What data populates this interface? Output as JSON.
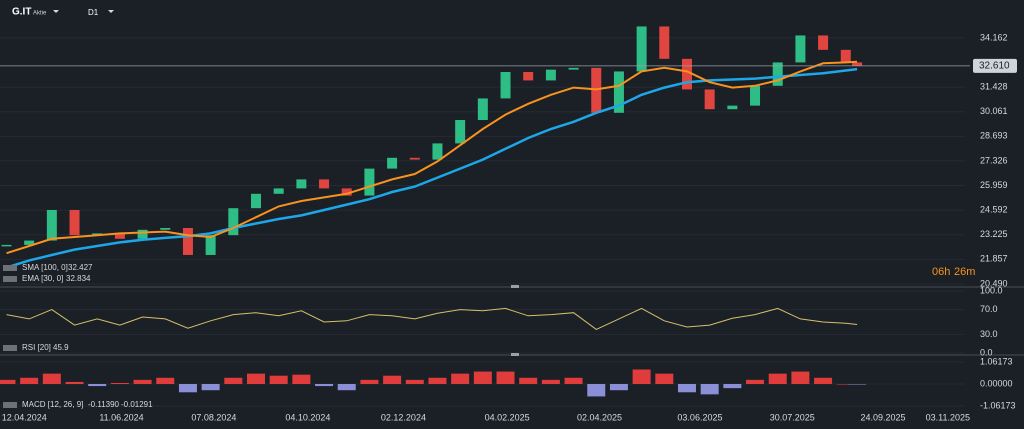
{
  "header": {
    "symbol": "G.IT",
    "kind": "Aktie",
    "timeframe": "D1"
  },
  "timer": {
    "hours": "06h",
    "minutes": "26m"
  },
  "current_price": {
    "value": 32.61,
    "label": "32.610"
  },
  "chart_data": [
    {
      "type": "candlestick",
      "x": [
        "01.04.2024",
        "15.04.2024",
        "29.04.2024",
        "13.05.2024",
        "27.05.2024",
        "10.06.2024",
        "24.06.2024",
        "08.07.2024",
        "22.07.2024",
        "05.08.2024",
        "19.08.2024",
        "02.09.2024",
        "16.09.2024",
        "30.09.2024",
        "14.10.2024",
        "28.10.2024",
        "11.11.2024",
        "25.11.2024",
        "09.12.2024",
        "23.12.2024",
        "06.01.2025",
        "20.01.2025",
        "03.02.2025",
        "17.02.2025",
        "03.03.2025",
        "17.03.2025",
        "31.03.2025",
        "14.04.2025",
        "28.04.2025",
        "12.05.2025",
        "26.05.2025",
        "09.06.2025",
        "23.06.2025",
        "07.07.2025",
        "21.07.2025",
        "04.08.2025",
        "18.08.2025",
        "01.09.2025",
        "08.09.2025"
      ],
      "xlim": [
        "28.03.2024",
        "20.12.2025"
      ],
      "ylim": [
        20.32,
        36.27
      ],
      "yticks": [
        34.162,
        31.428,
        30.061,
        28.693,
        27.326,
        25.959,
        24.592,
        23.225,
        21.857,
        {
          "value": 20.49,
          "label": "20.490"
        }
      ],
      "grid": true,
      "up_color": "#2ebd85",
      "down_color": "#e0463f",
      "values": [
        22.66,
        22.9,
        24.6,
        23.2,
        23.3,
        23.0,
        23.5,
        23.6,
        22.1,
        23.2,
        24.7,
        25.5,
        25.8,
        26.3,
        25.8,
        25.4,
        26.9,
        27.5,
        27.4,
        28.3,
        29.6,
        30.8,
        32.27,
        31.8,
        32.4,
        32.5,
        30.0,
        32.3,
        34.8,
        33.0,
        31.3,
        30.2,
        30.4,
        31.5,
        32.8,
        34.3,
        33.5,
        32.8,
        32.61
      ],
      "series": [
        {
          "name": "SMA [100, 0]",
          "color": "#1ea7e8",
          "values": [
            21.4,
            21.8,
            22.1,
            22.4,
            22.6,
            22.8,
            22.95,
            23.05,
            23.15,
            23.3,
            23.6,
            23.85,
            24.1,
            24.3,
            24.6,
            24.9,
            25.2,
            25.6,
            25.9,
            26.4,
            26.9,
            27.4,
            28.0,
            28.6,
            29.1,
            29.5,
            30.0,
            30.4,
            31.0,
            31.4,
            31.7,
            31.8,
            31.85,
            31.9,
            32.0,
            32.1,
            32.2,
            32.35,
            32.427
          ]
        },
        {
          "name": "EMA [30, 0]",
          "color": "#f7931e",
          "values": [
            22.2,
            22.6,
            23.0,
            23.1,
            23.2,
            23.3,
            23.35,
            23.4,
            23.2,
            23.1,
            23.6,
            24.2,
            24.8,
            25.1,
            25.3,
            25.5,
            25.9,
            26.3,
            26.6,
            27.3,
            28.2,
            29.1,
            29.9,
            30.5,
            31.0,
            31.4,
            31.3,
            31.5,
            32.3,
            32.5,
            32.3,
            31.7,
            31.4,
            31.5,
            31.8,
            32.3,
            32.75,
            32.8,
            32.834
          ]
        }
      ]
    },
    {
      "type": "line",
      "x": [
        "01.04.2024",
        "15.04.2024",
        "29.04.2024",
        "13.05.2024",
        "27.05.2024",
        "10.06.2024",
        "24.06.2024",
        "08.07.2024",
        "22.07.2024",
        "05.08.2024",
        "19.08.2024",
        "02.09.2024",
        "16.09.2024",
        "30.09.2024",
        "14.10.2024",
        "28.10.2024",
        "11.11.2024",
        "25.11.2024",
        "09.12.2024",
        "23.12.2024",
        "06.01.2025",
        "20.01.2025",
        "03.02.2025",
        "17.02.2025",
        "03.03.2025",
        "17.03.2025",
        "31.03.2025",
        "14.04.2025",
        "28.04.2025",
        "12.05.2025",
        "26.05.2025",
        "09.06.2025",
        "23.06.2025",
        "07.07.2025",
        "21.07.2025",
        "04.08.2025",
        "18.08.2025",
        "01.09.2025",
        "08.09.2025"
      ],
      "xlim": [
        "28.03.2024",
        "20.12.2025"
      ],
      "ylim": [
        0,
        100
      ],
      "yticks": [
        {
          "value": 100,
          "label": "100.0"
        },
        {
          "value": 70,
          "label": "70.0"
        },
        {
          "value": 30,
          "label": "30.0"
        },
        {
          "value": 0,
          "label": "0.0"
        }
      ],
      "series": [
        {
          "name": "RSI [20]",
          "color": "#d4c26a",
          "values": [
            62,
            55,
            70,
            45,
            55,
            45,
            58,
            55,
            40,
            52,
            62,
            65,
            60,
            68,
            50,
            52,
            62,
            60,
            55,
            64,
            70,
            68,
            72,
            60,
            62,
            65,
            38,
            55,
            72,
            52,
            42,
            45,
            56,
            62,
            72,
            55,
            50,
            48,
            45.9
          ]
        }
      ]
    },
    {
      "type": "histogram",
      "x": [
        "01.04.2024",
        "15.04.2024",
        "29.04.2024",
        "13.05.2024",
        "27.05.2024",
        "10.06.2024",
        "24.06.2024",
        "08.07.2024",
        "22.07.2024",
        "05.08.2024",
        "19.08.2024",
        "02.09.2024",
        "16.09.2024",
        "30.09.2024",
        "14.10.2024",
        "28.10.2024",
        "11.11.2024",
        "25.11.2024",
        "09.12.2024",
        "23.12.2024",
        "06.01.2025",
        "20.01.2025",
        "03.02.2025",
        "17.02.2025",
        "03.03.2025",
        "17.03.2025",
        "31.03.2025",
        "14.04.2025",
        "28.04.2025",
        "12.05.2025",
        "26.05.2025",
        "09.06.2025",
        "23.06.2025",
        "07.07.2025",
        "21.07.2025",
        "04.08.2025",
        "18.08.2025",
        "01.09.2025",
        "08.09.2025"
      ],
      "xlim": [
        "28.03.2024",
        "20.12.2025"
      ],
      "ylim": [
        -1.06173,
        1.06173
      ],
      "yticks": [
        1.06173,
        {
          "value": 0,
          "label": "0.00000"
        },
        -1.06173
      ],
      "xticks": [
        "12.04.2024",
        "11.06.2024",
        "07.08.2024",
        "04.10.2024",
        "02.12.2024",
        "04.02.2025",
        "02.04.2025",
        "03.06.2025",
        "30.07.2025",
        "24.09.2025",
        "03.11.2025"
      ],
      "macd_value": {
        "value": -0.1139,
        "label": "-0.11390"
      },
      "series": [
        {
          "name": "MACD [12, 26, 9]",
          "color": "#e03c3c",
          "negative_color": "#8a8fd8",
          "values": [
            0.2,
            0.3,
            0.5,
            0.1,
            -0.1,
            0.05,
            0.2,
            0.3,
            -0.4,
            -0.3,
            0.3,
            0.5,
            0.4,
            0.45,
            -0.1,
            -0.3,
            0.2,
            0.4,
            0.2,
            0.3,
            0.5,
            0.6,
            0.6,
            0.3,
            0.2,
            0.3,
            -0.6,
            -0.3,
            0.7,
            0.5,
            -0.4,
            -0.5,
            -0.2,
            0.2,
            0.5,
            0.6,
            0.3,
            0.0,
            -0.01291
          ]
        }
      ]
    }
  ]
}
